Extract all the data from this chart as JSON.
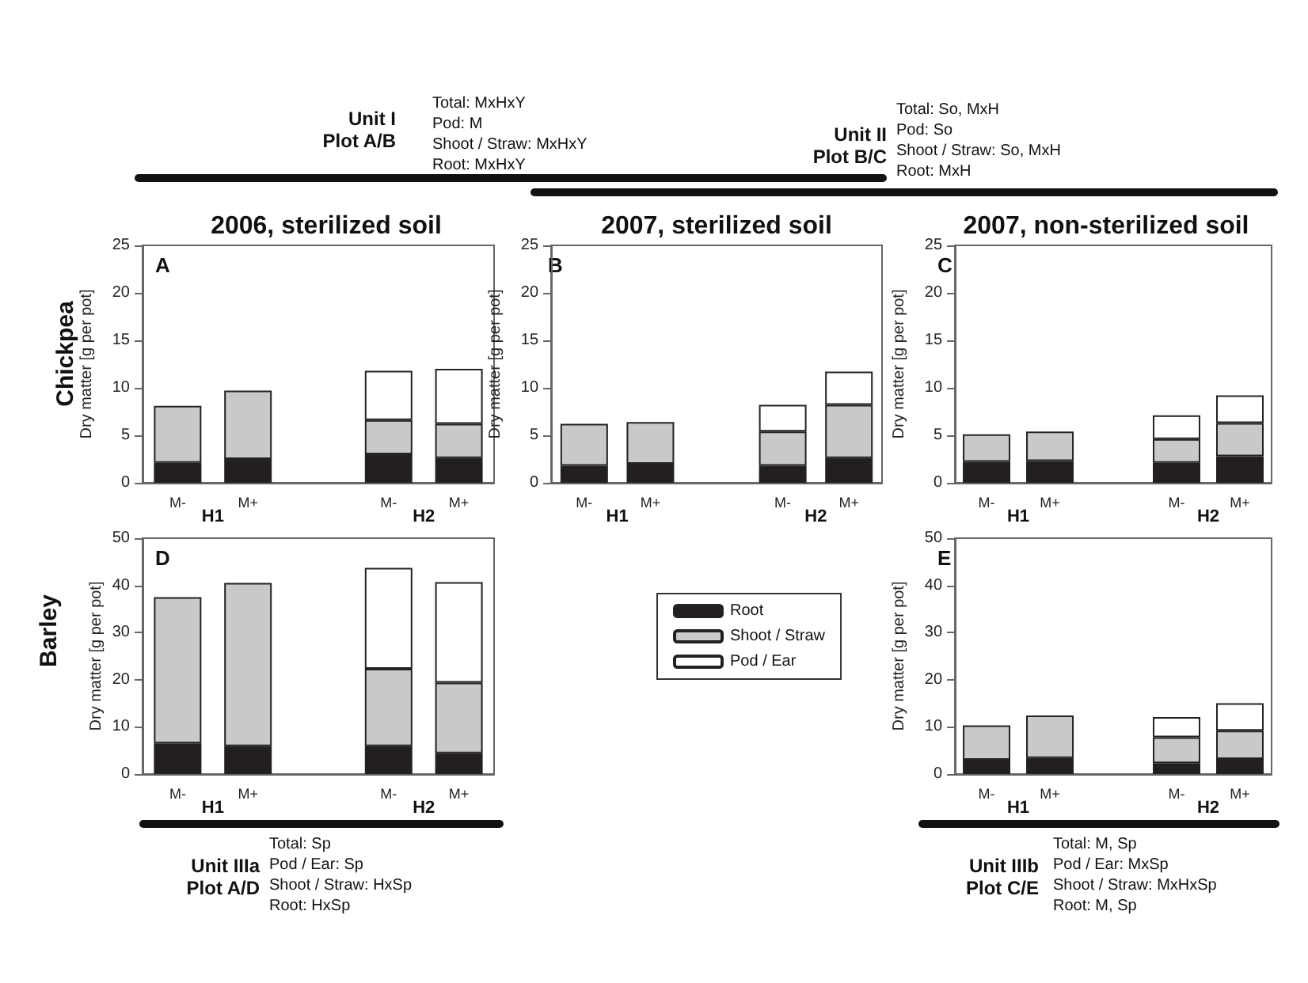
{
  "chart_data": [
    {
      "type": "bar",
      "stacked": true,
      "title": "2006, sterilized soil",
      "ylabel": "Dry matter [g per pot]",
      "categories": [
        "M-",
        "M+",
        null,
        "M-",
        "M+"
      ],
      "ylim": [
        0,
        25
      ],
      "yticks": [
        0,
        5,
        10,
        15,
        20,
        25
      ],
      "grid": false,
      "legend": false,
      "annotations": [
        "A",
        "H1",
        "H2",
        "Chickpea",
        "Unit I",
        "Plot A/B",
        "Total: MxHxY",
        "Pod: M",
        "Shoot / Straw: MxHxY",
        "Root: MxHxY"
      ],
      "series": [
        {
          "color": "#231f20",
          "values": [
            2.1,
            2.5,
            null,
            3.0,
            2.6
          ]
        },
        {
          "color": "#c8c9cb",
          "values": [
            6.0,
            7.2,
            null,
            3.6,
            3.6
          ]
        },
        {
          "color": "#ffffff",
          "values": [
            null,
            null,
            null,
            5.2,
            5.8
          ]
        }
      ]
    },
    {
      "type": "bar",
      "stacked": true,
      "title": "2007, sterilized soil",
      "ylabel": "Dry matter [g per pot]",
      "categories": [
        "M-",
        "M+",
        null,
        "M-",
        "M+"
      ],
      "ylim": [
        0,
        25
      ],
      "yticks": [
        0,
        5,
        10,
        15,
        20,
        25
      ],
      "grid": false,
      "legend": false,
      "annotations": [
        "B",
        "H1",
        "H2",
        "Unit II",
        "Plot B/C",
        "Total: So, MxH",
        "Pod: So",
        "Shoot / Straw: So, MxH",
        "Root: MxH"
      ],
      "series": [
        {
          "color": "#231f20",
          "values": [
            1.8,
            2.0,
            null,
            1.8,
            2.6
          ]
        },
        {
          "color": "#c8c9cb",
          "values": [
            4.4,
            4.4,
            null,
            3.6,
            5.6
          ]
        },
        {
          "color": "#ffffff",
          "values": [
            null,
            null,
            null,
            2.8,
            3.5
          ]
        }
      ]
    },
    {
      "type": "bar",
      "stacked": true,
      "title": "2007, non-sterilized soil",
      "ylabel": "Dry matter [g per pot]",
      "categories": [
        "M-",
        "M+",
        null,
        "M-",
        "M+"
      ],
      "ylim": [
        0,
        25
      ],
      "yticks": [
        0,
        5,
        10,
        15,
        20,
        25
      ],
      "grid": false,
      "legend": false,
      "annotations": [
        "C",
        "H1",
        "H2"
      ],
      "series": [
        {
          "color": "#231f20",
          "values": [
            2.2,
            2.3,
            null,
            2.1,
            2.8
          ]
        },
        {
          "color": "#c8c9cb",
          "values": [
            2.9,
            3.1,
            null,
            2.5,
            3.5
          ]
        },
        {
          "color": "#ffffff",
          "values": [
            null,
            null,
            null,
            2.5,
            2.9
          ]
        }
      ]
    },
    {
      "type": "bar",
      "stacked": true,
      "ylabel": "Dry matter [g per pot]",
      "categories": [
        "M-",
        "M+",
        null,
        "M-",
        "M+"
      ],
      "ylim": [
        0,
        50
      ],
      "yticks": [
        0,
        10,
        20,
        30,
        40,
        50
      ],
      "grid": false,
      "legend": "right",
      "annotations": [
        "D",
        "H1",
        "H2",
        "Barley",
        "Unit IIIa",
        "Plot A/D",
        "Total: Sp",
        "Pod / Ear: Sp",
        "Shoot / Straw: HxSp",
        "Root: HxSp"
      ],
      "series": [
        {
          "name": "Root",
          "color": "#231f20",
          "values": [
            6.5,
            5.9,
            null,
            5.9,
            4.4
          ]
        },
        {
          "name": "Shoot / Straw",
          "color": "#c8c9cb",
          "values": [
            31.0,
            34.6,
            null,
            16.4,
            15.0
          ]
        },
        {
          "name": "Pod / Ear",
          "color": "#ffffff",
          "values": [
            null,
            null,
            null,
            21.4,
            21.3
          ]
        }
      ]
    },
    {
      "type": "bar",
      "stacked": true,
      "ylabel": "Dry matter [g per pot]",
      "categories": [
        "M-",
        "M+",
        null,
        "M-",
        "M+"
      ],
      "ylim": [
        0,
        50
      ],
      "yticks": [
        0,
        10,
        20,
        30,
        40,
        50
      ],
      "grid": false,
      "legend": false,
      "annotations": [
        "E",
        "H1",
        "H2",
        "Unit IIIb",
        "Plot C/E",
        "Total: M, Sp",
        "Pod / Ear: MxSp",
        "Shoot / Straw: MxHxSp",
        "Root: M, Sp"
      ],
      "series": [
        {
          "color": "#231f20",
          "values": [
            3.0,
            3.4,
            null,
            2.3,
            3.2
          ]
        },
        {
          "color": "#c8c9cb",
          "values": [
            7.3,
            9.0,
            null,
            5.5,
            6.0
          ]
        },
        {
          "color": "#ffffff",
          "values": [
            null,
            null,
            null,
            4.3,
            5.8
          ]
        }
      ]
    }
  ]
}
